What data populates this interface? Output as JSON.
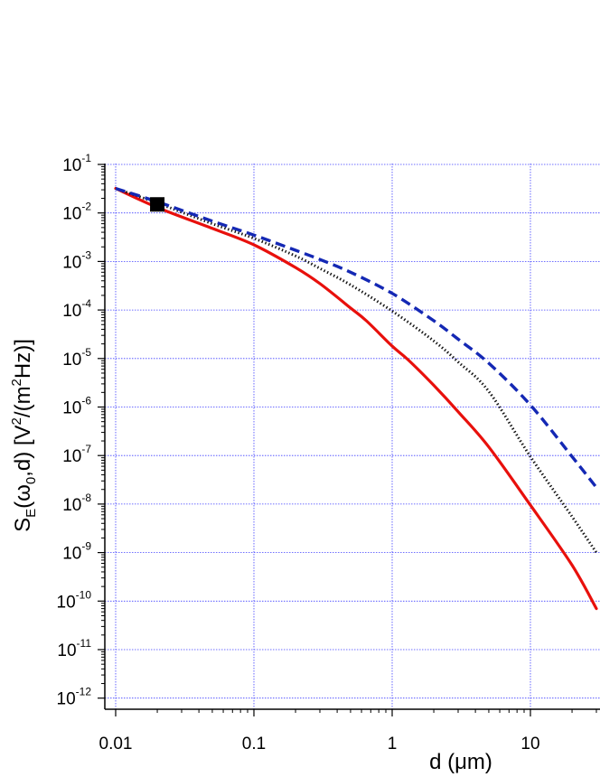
{
  "chart_data": {
    "type": "line",
    "title": "",
    "xlabel": "d (μm)",
    "ylabel": "S_E(ω_0,d) [V^2/(m^2Hz)]",
    "xscale": "log",
    "yscale": "log",
    "xlim": [
      0.01,
      30
    ],
    "ylim": [
      1e-12,
      0.1
    ],
    "grid": true,
    "x_ticks": [
      {
        "value": 0.01,
        "label": "0.01"
      },
      {
        "value": 0.1,
        "label": "0.1"
      },
      {
        "value": 1,
        "label": "1"
      },
      {
        "value": 10,
        "label": "10"
      }
    ],
    "y_ticks": [
      {
        "value": 0.1,
        "base": "10",
        "exp": "-1"
      },
      {
        "value": 0.01,
        "base": "10",
        "exp": "-2"
      },
      {
        "value": 0.001,
        "base": "10",
        "exp": "-3"
      },
      {
        "value": 0.0001,
        "base": "10",
        "exp": "-4"
      },
      {
        "value": 1e-05,
        "base": "10",
        "exp": "-5"
      },
      {
        "value": 1e-06,
        "base": "10",
        "exp": "-6"
      },
      {
        "value": 1e-07,
        "base": "10",
        "exp": "-7"
      },
      {
        "value": 1e-08,
        "base": "10",
        "exp": "-8"
      },
      {
        "value": 1e-09,
        "base": "10",
        "exp": "-9"
      },
      {
        "value": 1e-10,
        "base": "10",
        "exp": "-10"
      },
      {
        "value": 1e-11,
        "base": "10",
        "exp": "-11"
      },
      {
        "value": 1e-12,
        "base": "10",
        "exp": "-12"
      }
    ],
    "series": [
      {
        "style": "solid",
        "color": "#e8100c",
        "x": [
          0.01,
          0.02,
          0.05,
          0.1,
          0.2,
          0.3,
          0.5,
          0.65,
          1,
          1.3,
          2,
          3,
          5,
          10,
          20,
          30
        ],
        "y": [
          0.032,
          0.013,
          0.0048,
          0.0022,
          0.00075,
          0.00035,
          0.00011,
          6e-05,
          1.8e-05,
          9.5e-06,
          2.8e-06,
          8e-07,
          1.5e-07,
          9.5e-09,
          5.5e-10,
          7e-11
        ]
      },
      {
        "style": "dotted",
        "color": "#111111",
        "x": [
          0.01,
          0.02,
          0.05,
          0.1,
          0.2,
          0.3,
          0.5,
          1,
          2,
          3,
          5,
          10,
          20,
          30
        ],
        "y": [
          0.032,
          0.016,
          0.006,
          0.003,
          0.0013,
          0.00072,
          0.00033,
          9.5e-05,
          2.3e-05,
          8.5e-06,
          2.1e-06,
          9.5e-08,
          5.5e-09,
          1e-09
        ]
      },
      {
        "style": "dashed",
        "color": "#1428b4",
        "x": [
          0.01,
          0.02,
          0.05,
          0.1,
          0.2,
          0.3,
          0.5,
          1,
          2,
          3,
          5,
          10,
          20,
          30
        ],
        "y": [
          0.032,
          0.017,
          0.0068,
          0.0035,
          0.0017,
          0.0011,
          0.0006,
          0.00022,
          6e-05,
          2.5e-05,
          8e-06,
          1.1e-06,
          9.5e-08,
          2.2e-08
        ]
      }
    ],
    "markers": [
      {
        "shape": "square",
        "color": "#000000",
        "x": 0.02,
        "y": 0.015
      }
    ]
  }
}
